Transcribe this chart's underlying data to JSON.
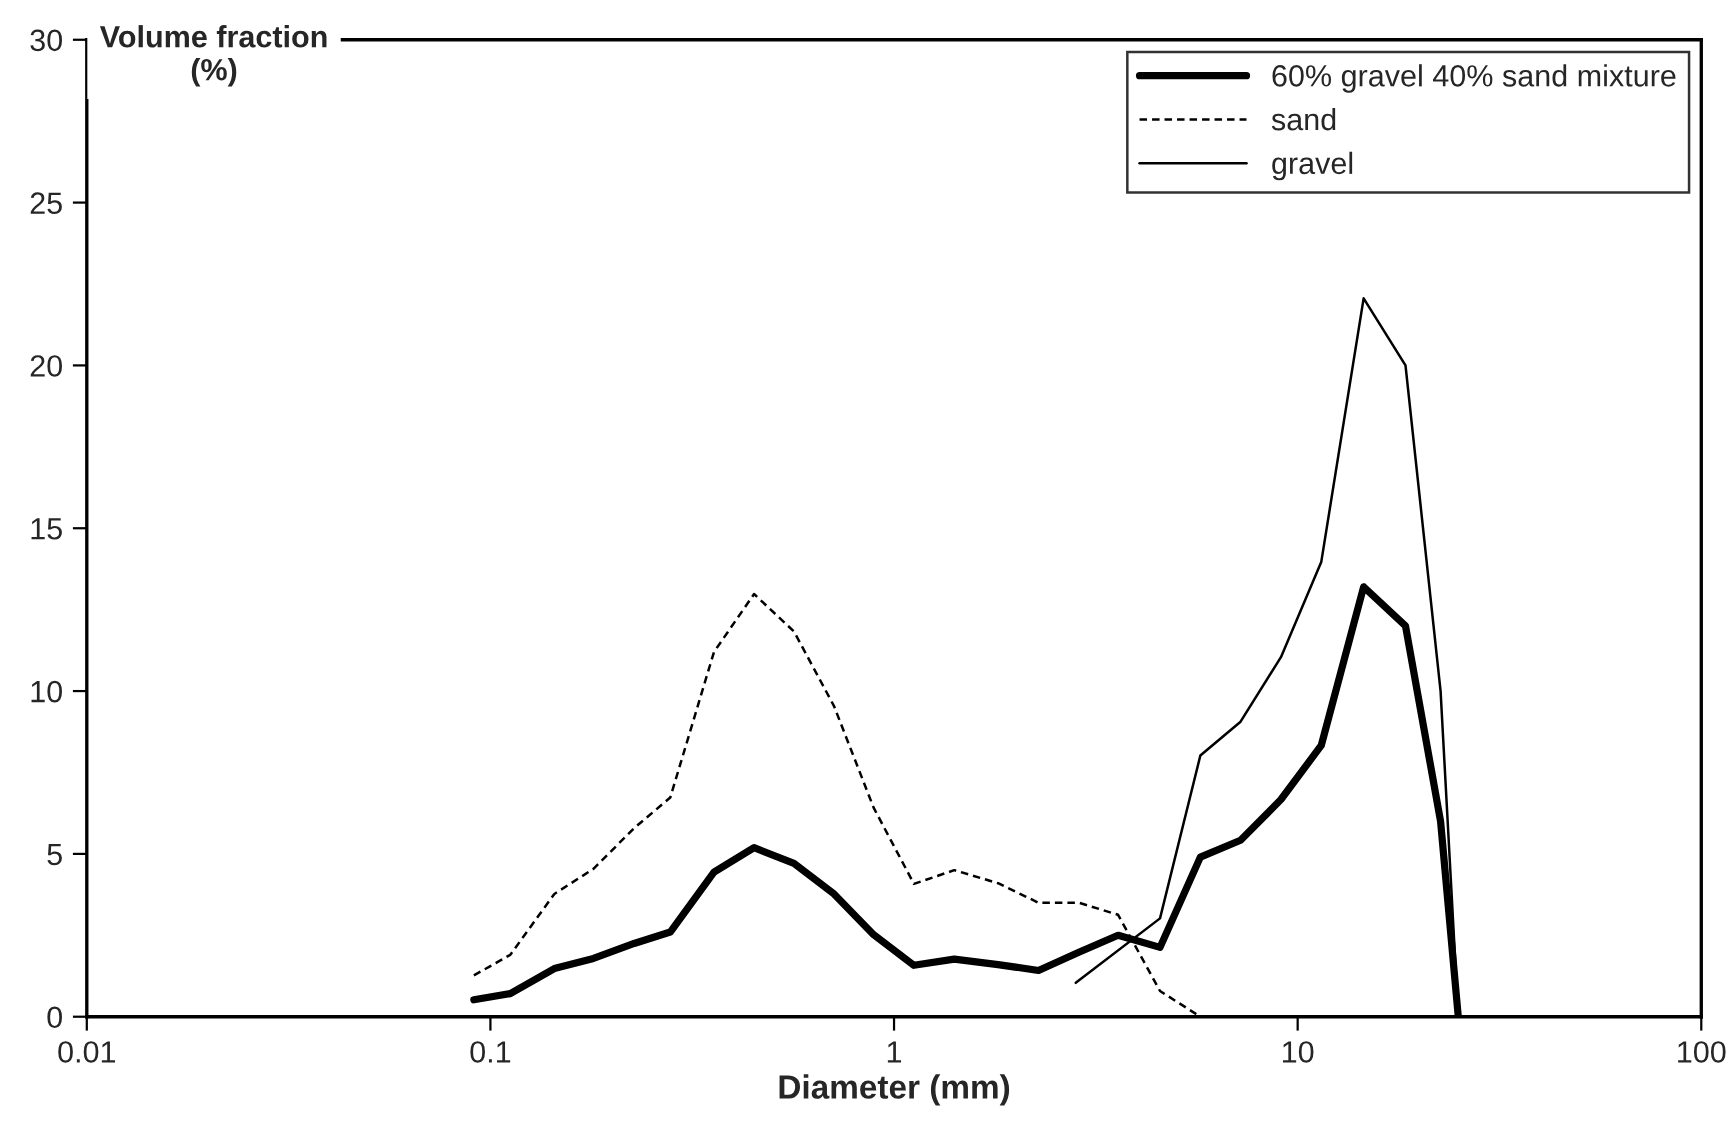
{
  "chart_data": {
    "type": "line",
    "xlabel": "Diameter (mm)",
    "ylabel": "Volume fraction\n(%)",
    "log": "x",
    "xlim": [
      0.01,
      100
    ],
    "xticks": [
      0.01,
      0.1,
      1,
      10,
      100
    ],
    "ylim": [
      0,
      30
    ],
    "yticks": [
      0,
      5,
      10,
      15,
      20,
      25,
      30
    ],
    "grid": false,
    "legend": "top right",
    "marker": "none",
    "series": [
      {
        "name": "60% gravel 40% sand mixture",
        "color": "#000000",
        "line_style": "solid",
        "x": [
          0.091,
          0.112,
          0.144,
          0.18,
          0.227,
          0.279,
          0.358,
          0.45,
          0.565,
          0.71,
          0.89,
          1.12,
          1.41,
          1.81,
          2.28,
          2.87,
          3.59,
          4.56,
          5.74,
          7.22,
          9.09,
          11.44,
          14.57,
          18.5,
          22.6,
          25
        ],
        "values": [
          0.52,
          0.71,
          1.48,
          1.79,
          2.25,
          2.6,
          4.44,
          5.19,
          4.71,
          3.77,
          2.52,
          1.58,
          1.77,
          1.6,
          1.42,
          1.98,
          2.5,
          2.13,
          4.9,
          5.42,
          6.67,
          8.33,
          13.2,
          12,
          6,
          0
        ]
      },
      {
        "name": "sand",
        "color": "#000000",
        "line_style": "dashed",
        "x": [
          0.091,
          0.112,
          0.144,
          0.18,
          0.227,
          0.279,
          0.358,
          0.45,
          0.565,
          0.71,
          0.89,
          1.12,
          1.41,
          1.81,
          2.28,
          2.87,
          3.59,
          4.56,
          5.74
        ],
        "values": [
          1.27,
          1.9,
          3.77,
          4.54,
          5.79,
          6.73,
          11.2,
          12.98,
          11.83,
          9.54,
          6.42,
          4.08,
          4.5,
          4.1,
          3.5,
          3.5,
          3.13,
          0.79,
          0
        ]
      },
      {
        "name": "gravel",
        "color": "#000000",
        "line_style": "solid",
        "x": [
          2.82,
          4.56,
          5.74,
          7.22,
          9.09,
          11.44,
          14.57,
          18.5,
          22.6,
          25
        ],
        "values": [
          1.04,
          3.02,
          8.02,
          9.06,
          11.04,
          13.96,
          22.06,
          20,
          10,
          0
        ]
      }
    ]
  }
}
